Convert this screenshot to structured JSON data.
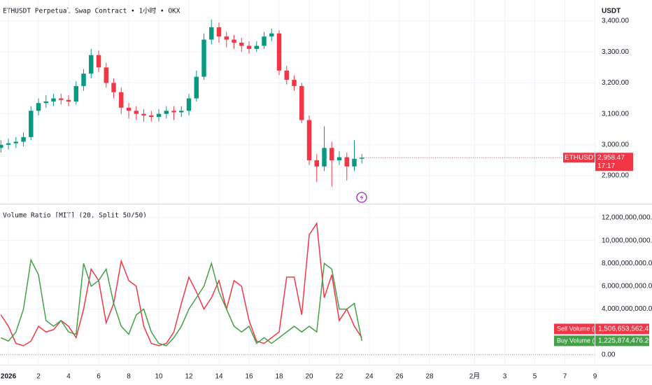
{
  "chart_data": [
    {
      "type": "candlestick",
      "title": "ETHUSDT Perpetual Swap Contract • 1小时 • OKX",
      "axis_label": "USDT",
      "symbol_tag": "ETHUSDT.P",
      "last_label": "2,958.47",
      "countdown": "17:17",
      "up_color": "#089981",
      "down_color": "#f23645",
      "x": [
        -0.5,
        0,
        0.5,
        1,
        1.5,
        2,
        2.5,
        3,
        3.5,
        4,
        4.5,
        5,
        5.5,
        6,
        6.5,
        7,
        7.5,
        8,
        8.5,
        9,
        9.5,
        10,
        10.5,
        11,
        11.5,
        12,
        12.5,
        13,
        13.5,
        14,
        14.5,
        15,
        15.5,
        16,
        16.5,
        17,
        17.5,
        18,
        18.5,
        19,
        19.5,
        20,
        20.5,
        21,
        21.5,
        22,
        22.5,
        23,
        23.5
      ],
      "open": [
        2990,
        3000,
        3005,
        3010,
        3025,
        3110,
        3135,
        3140,
        3150,
        3145,
        3140,
        3190,
        3230,
        3290,
        3250,
        3200,
        3170,
        3120,
        3110,
        3100,
        3095,
        3090,
        3100,
        3110,
        3105,
        3110,
        3150,
        3220,
        3340,
        3380,
        3350,
        3340,
        3330,
        3320,
        3310,
        3320,
        3350,
        3360,
        3240,
        3210,
        3190,
        3080,
        2950,
        2930,
        2990,
        2950,
        2960,
        2930,
        2955
      ],
      "high": [
        3015,
        3020,
        3025,
        3040,
        3125,
        3150,
        3160,
        3165,
        3165,
        3160,
        3205,
        3245,
        3310,
        3305,
        3265,
        3215,
        3185,
        3135,
        3125,
        3115,
        3110,
        3115,
        3125,
        3125,
        3125,
        3165,
        3240,
        3360,
        3405,
        3395,
        3365,
        3355,
        3345,
        3335,
        3335,
        3365,
        3375,
        3370,
        3255,
        3225,
        3200,
        3095,
        2970,
        3060,
        3010,
        2980,
        2975,
        3015,
        2970
      ],
      "low": [
        2975,
        2985,
        2990,
        2995,
        3015,
        3095,
        3120,
        3125,
        3130,
        3125,
        3130,
        3175,
        3215,
        3235,
        3185,
        3150,
        3100,
        3085,
        3080,
        3075,
        3075,
        3075,
        3085,
        3080,
        3090,
        3095,
        3140,
        3210,
        3325,
        3330,
        3315,
        3310,
        3300,
        3295,
        3300,
        3310,
        3335,
        3225,
        3195,
        3175,
        3070,
        2935,
        2880,
        2915,
        2865,
        2935,
        2885,
        2915,
        2940
      ],
      "close": [
        3000,
        3005,
        3010,
        3025,
        3110,
        3135,
        3140,
        3150,
        3145,
        3140,
        3190,
        3230,
        3290,
        3250,
        3200,
        3170,
        3120,
        3110,
        3100,
        3095,
        3090,
        3100,
        3110,
        3105,
        3110,
        3150,
        3220,
        3340,
        3380,
        3350,
        3340,
        3330,
        3320,
        3310,
        3320,
        3350,
        3360,
        3240,
        3210,
        3190,
        3080,
        2950,
        2930,
        2990,
        2950,
        2960,
        2930,
        2955,
        2958.47
      ],
      "xlim": [
        -0.56,
        39.07
      ],
      "ylim": [
        2812,
        3468
      ],
      "yticks": [
        {
          "value": 2900,
          "label": "2,900.00"
        },
        {
          "value": 3000,
          "label": "3,000.00"
        },
        {
          "value": 3100,
          "label": "3,100.00"
        },
        {
          "value": 3200,
          "label": "3,200.00"
        },
        {
          "value": 3300,
          "label": "3,300.00"
        },
        {
          "value": 3400,
          "label": "3,400.00"
        }
      ],
      "grid": true
    },
    {
      "type": "line",
      "title": "Volume Ratio [MIT] (20, Split 50/50)",
      "x": [
        -0.5,
        0,
        0.5,
        1,
        1.5,
        2,
        2.5,
        3,
        3.5,
        4,
        4.5,
        5,
        5.5,
        6,
        6.5,
        7,
        7.5,
        8,
        8.5,
        9,
        9.5,
        10,
        10.5,
        11,
        11.5,
        12,
        12.5,
        13,
        13.5,
        14,
        14.5,
        15,
        15.5,
        16,
        16.5,
        17,
        17.5,
        18,
        18.5,
        19,
        19.5,
        20,
        20.5,
        21,
        21.5,
        22,
        22.5,
        23,
        23.5
      ],
      "series": [
        {
          "name": "Sell Volume (n)",
          "color": "#f23645",
          "last_label": "1,506,653,562.47",
          "values": [
            3500000000.0,
            2500000000.0,
            1000000000.0,
            800000000.0,
            1200000000.0,
            2500000000.0,
            2000000000.0,
            2200000000.0,
            3000000000.0,
            2500000000.0,
            1500000000.0,
            4000000000.0,
            7500000000.0,
            6500000000.0,
            2800000000.0,
            4500000000.0,
            8200000000.0,
            6500000000.0,
            6000000000.0,
            2500000000.0,
            1000000000.0,
            800000000.0,
            1000000000.0,
            2000000000.0,
            4500000000.0,
            6800000000.0,
            5500000000.0,
            4000000000.0,
            5000000000.0,
            6500000000.0,
            4000000000.0,
            6500000000.0,
            6000000000.0,
            3000000000.0,
            1200000000.0,
            1000000000.0,
            1500000000.0,
            2000000000.0,
            6800000000.0,
            6800000000.0,
            3500000000.0,
            10500000000.0,
            11500000000.0,
            5000000000.0,
            7000000000.0,
            3000000000.0,
            4000000000.0,
            2500000000.0,
            1506653562.47
          ]
        },
        {
          "name": "Buy Volume (n)",
          "color": "#43a047",
          "last_label": "1,225,874,476.26",
          "values": [
            1500000000.0,
            1200000000.0,
            2000000000.0,
            4000000000.0,
            8300000000.0,
            7000000000.0,
            3000000000.0,
            2500000000.0,
            3000000000.0,
            2000000000.0,
            1800000000.0,
            8000000000.0,
            6000000000.0,
            6500000000.0,
            7500000000.0,
            4500000000.0,
            2500000000.0,
            1800000000.0,
            3500000000.0,
            4000000000.0,
            2000000000.0,
            1000000000.0,
            800000000.0,
            1500000000.0,
            2500000000.0,
            4000000000.0,
            5000000000.0,
            6000000000.0,
            8000000000.0,
            5500000000.0,
            4000000000.0,
            2500000000.0,
            2000000000.0,
            2500000000.0,
            1000000000.0,
            1500000000.0,
            1000000000.0,
            1500000000.0,
            2000000000.0,
            2500000000.0,
            2000000000.0,
            2500000000.0,
            2000000000.0,
            8000000000.0,
            7500000000.0,
            4000000000.0,
            4000000000.0,
            4500000000.0,
            1225874476.26
          ]
        }
      ],
      "xlim": [
        -0.56,
        39.07
      ],
      "ylim": [
        -800000000.0,
        13160000000.0
      ],
      "yticks": [
        {
          "value": 0,
          "label": "0.00"
        },
        {
          "value": 4000000000.0,
          "label": "4,000,000,000.00"
        },
        {
          "value": 6000000000.0,
          "label": "6,000,000,000.00"
        },
        {
          "value": 8000000000.0,
          "label": "8,000,000,000.00"
        },
        {
          "value": 10000000000.0,
          "label": "10,000,000,000.00"
        },
        {
          "value": 12000000000.0,
          "label": "12,000,000,000.00"
        }
      ],
      "xticks": [
        {
          "value": 0,
          "label": "2026"
        },
        2,
        4,
        6,
        8,
        10,
        12,
        14,
        16,
        18,
        20,
        22,
        24,
        26,
        28,
        {
          "value": 31,
          "label": "2月"
        },
        {
          "value": 33,
          "label": "3"
        },
        {
          "value": 35,
          "label": "5"
        },
        {
          "value": 37,
          "label": "7"
        },
        {
          "value": 39,
          "label": "9"
        }
      ],
      "grid": true
    }
  ]
}
